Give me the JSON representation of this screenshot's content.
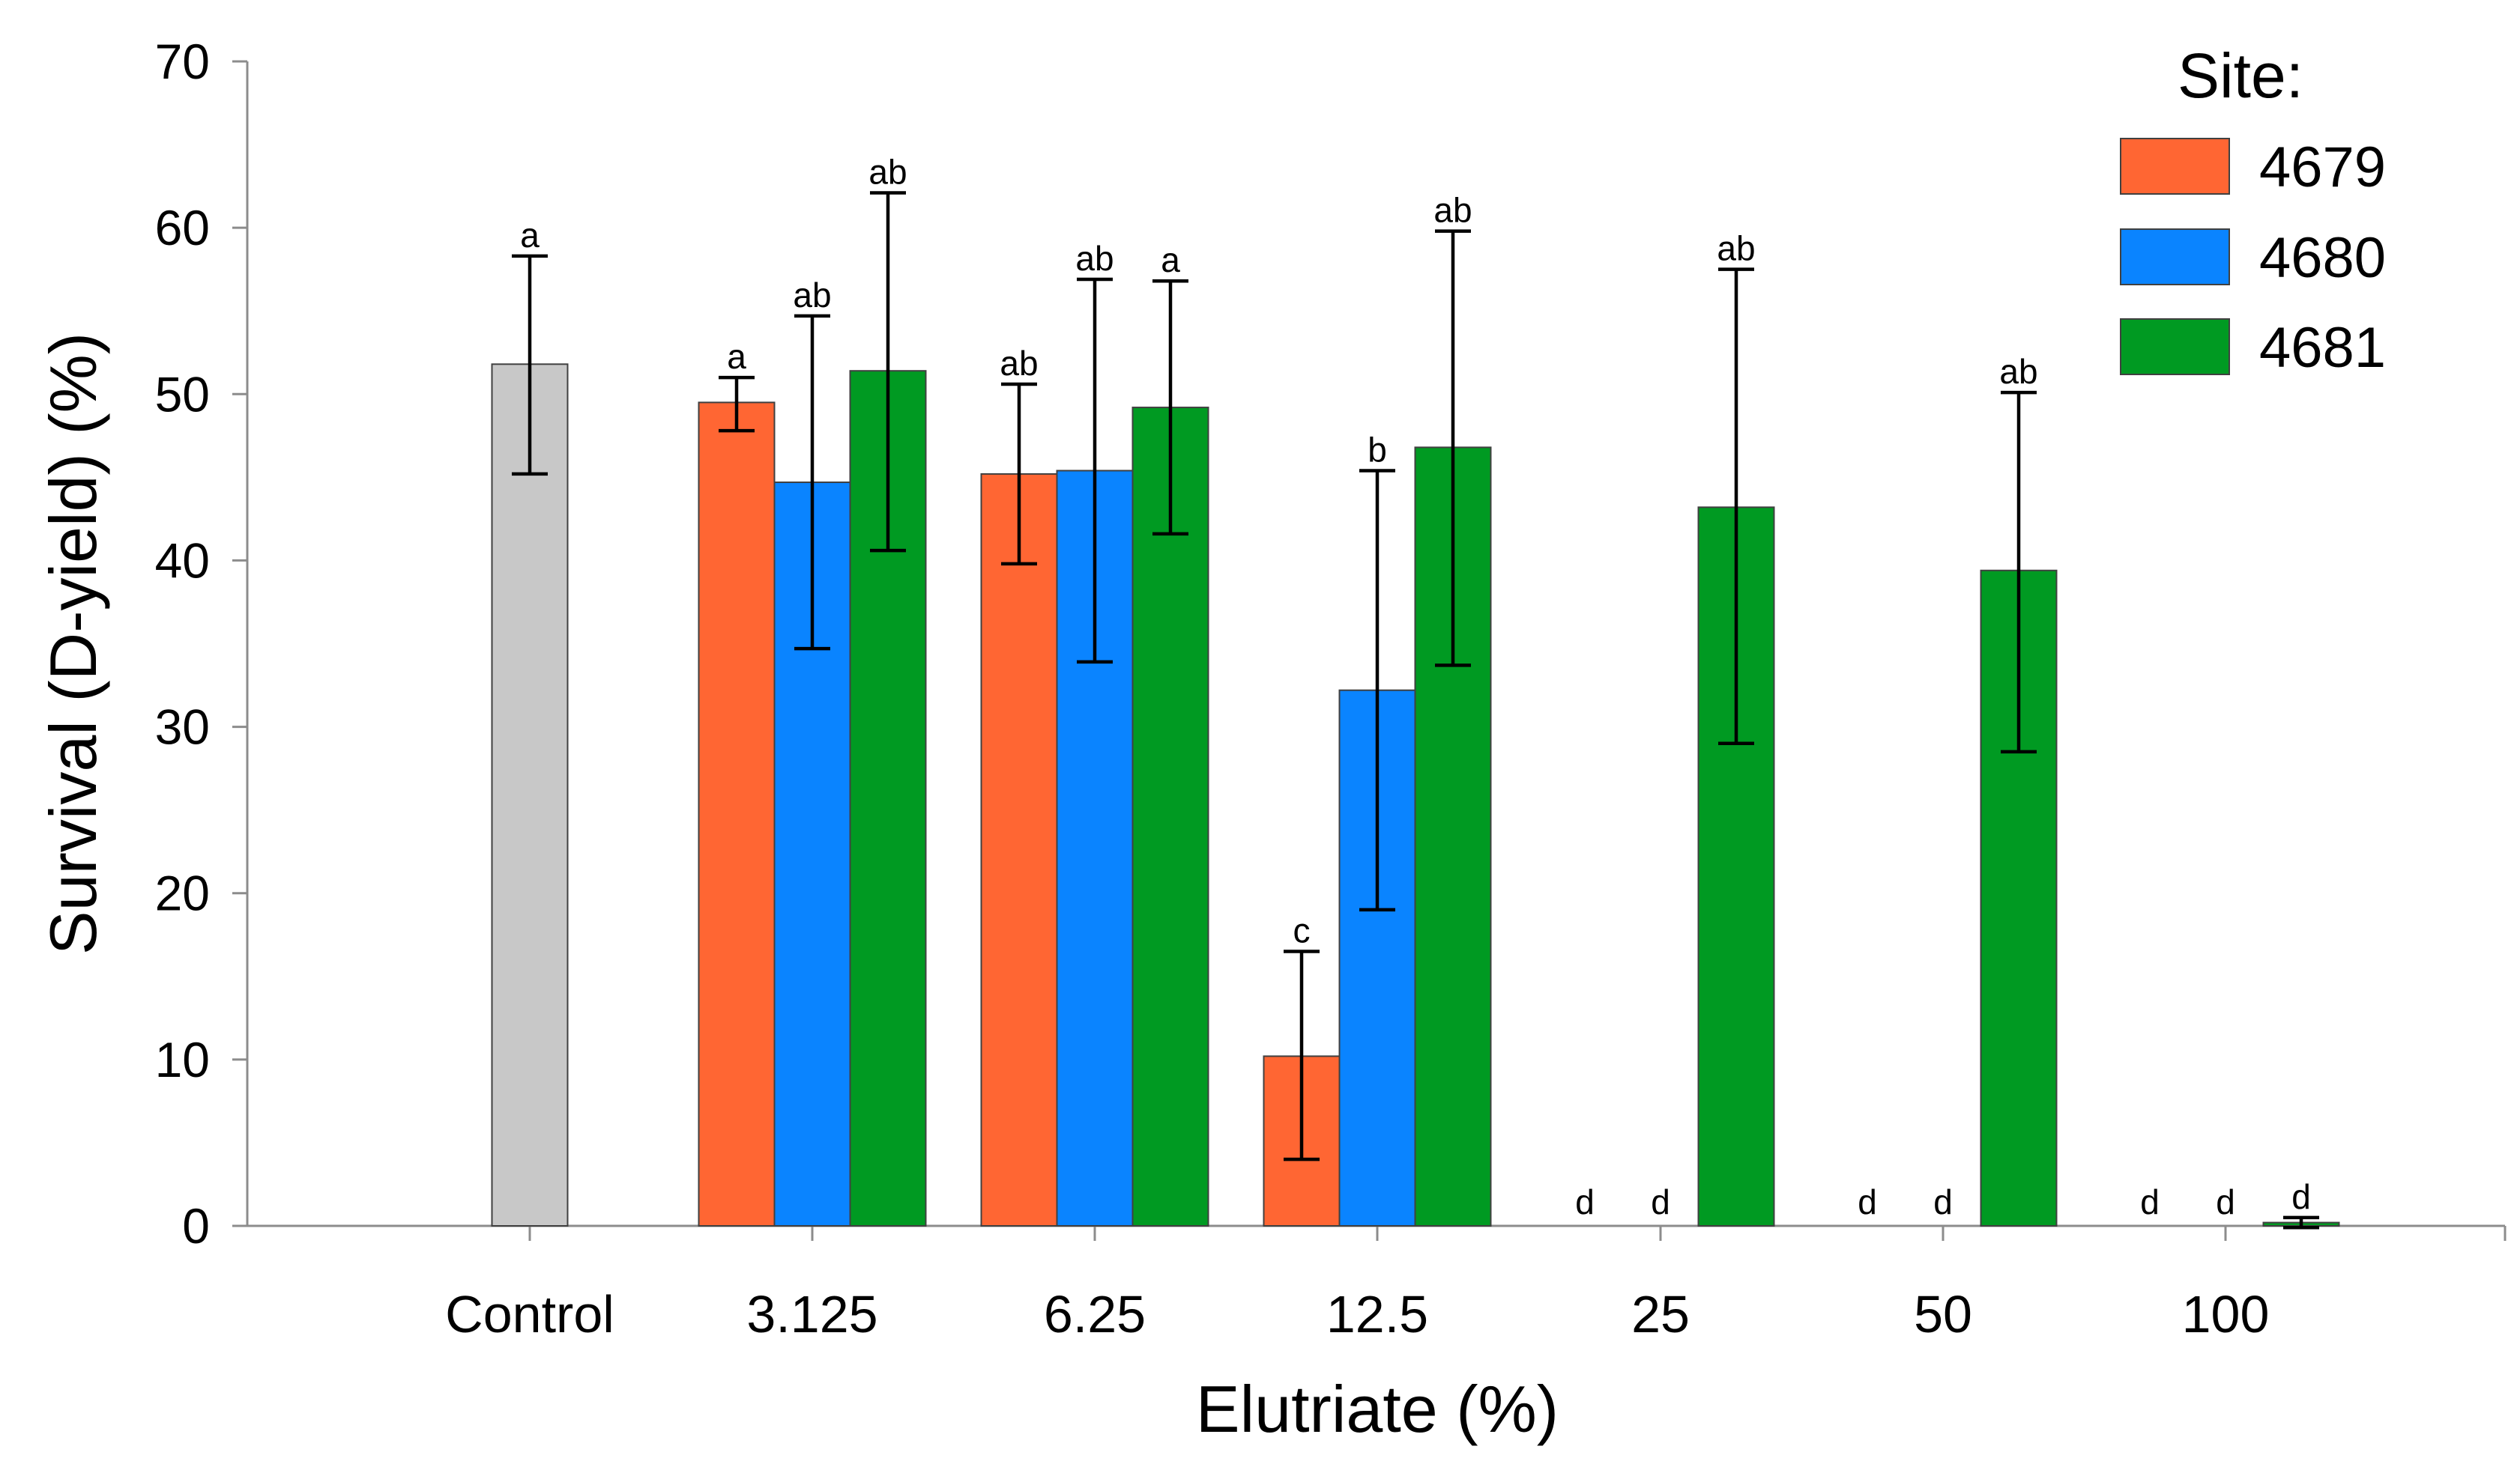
{
  "chart_data": {
    "type": "bar",
    "title": "",
    "xlabel": "Elutriate (%)",
    "ylabel": "Survival (D-yield) (%)",
    "ylim": [
      0,
      70
    ],
    "yticks": [
      0,
      10,
      20,
      30,
      40,
      50,
      60,
      70
    ],
    "grid": false,
    "legend": {
      "title": "Site:",
      "position": "top-right"
    },
    "categories": [
      "Control",
      "3.125",
      "6.25",
      "12.5",
      "25",
      "50",
      "100"
    ],
    "control": {
      "value": 51.8,
      "err_low": 45.2,
      "err_high": 58.3,
      "label": "a",
      "color": "#c8c8c8"
    },
    "series": [
      {
        "name": "4679",
        "color": "#ff6633",
        "values": [
          null,
          49.5,
          45.2,
          10.2,
          0,
          0,
          0
        ],
        "err_low": [
          null,
          47.8,
          39.8,
          4.0,
          null,
          null,
          null
        ],
        "err_high": [
          null,
          51.0,
          50.6,
          16.5,
          null,
          null,
          null
        ],
        "labels": [
          null,
          "a",
          "ab",
          "c",
          "d",
          "d",
          "d"
        ]
      },
      {
        "name": "4680",
        "color": "#0a84ff",
        "values": [
          null,
          44.7,
          45.4,
          32.2,
          0,
          0,
          0
        ],
        "err_low": [
          null,
          34.7,
          33.9,
          19.0,
          null,
          null,
          null
        ],
        "err_high": [
          null,
          54.7,
          56.9,
          45.4,
          null,
          null,
          null
        ],
        "labels": [
          null,
          "ab",
          "ab",
          "b",
          "d",
          "d",
          "d"
        ]
      },
      {
        "name": "4681",
        "color": "#009a22",
        "values": [
          null,
          51.4,
          49.2,
          46.8,
          43.2,
          39.4,
          0.2
        ],
        "err_low": [
          null,
          40.6,
          41.6,
          33.7,
          29.0,
          28.5,
          -0.1
        ],
        "err_high": [
          null,
          62.1,
          56.8,
          59.8,
          57.5,
          50.1,
          0.5
        ],
        "labels": [
          null,
          "ab",
          "a",
          "ab",
          "ab",
          "ab",
          "d"
        ]
      }
    ]
  }
}
